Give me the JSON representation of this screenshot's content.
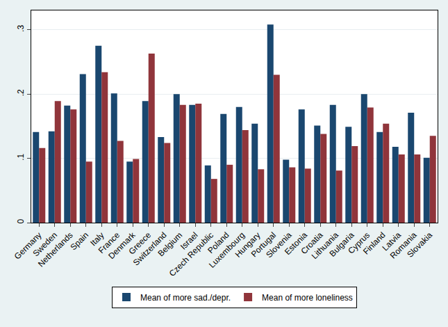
{
  "chart_data": {
    "type": "bar",
    "categories": [
      "Germany",
      "Sweden",
      "Netherlands",
      "Spain",
      "Italy",
      "France",
      "Denmark",
      "Greece",
      "Switzerland",
      "Belgium",
      "Israel",
      "Czech Republic",
      "Poland",
      "Luxembourg",
      "Hungary",
      "Portugal",
      "Slovenia",
      "Estonia",
      "Croatia",
      "Lithuania",
      "Bulgaria",
      "Cyprus",
      "Finland",
      "Latvia",
      "Romania",
      "Slovakia"
    ],
    "series": [
      {
        "name": "Mean of more sad./depr.",
        "color": "#1a476f",
        "values": [
          0.141,
          0.142,
          0.182,
          0.231,
          0.275,
          0.201,
          0.095,
          0.189,
          0.133,
          0.2,
          0.183,
          0.089,
          0.169,
          0.18,
          0.154,
          0.308,
          0.098,
          0.176,
          0.151,
          0.183,
          0.149,
          0.2,
          0.141,
          0.118,
          0.171,
          0.101
        ]
      },
      {
        "name": "Mean of more loneliness",
        "color": "#90353b",
        "values": [
          0.116,
          0.189,
          0.176,
          0.095,
          0.234,
          0.127,
          0.099,
          0.263,
          0.124,
          0.183,
          0.185,
          0.068,
          0.09,
          0.144,
          0.083,
          0.23,
          0.086,
          0.084,
          0.138,
          0.081,
          0.119,
          0.179,
          0.154,
          0.106,
          0.106,
          0.135
        ]
      }
    ],
    "ylim": [
      0,
      0.33
    ],
    "yticks": [
      0,
      {
        "value": 0.1,
        "label": ".1"
      },
      {
        "value": 0.2,
        "label": ".2"
      },
      {
        "value": 0.3,
        "label": ".3"
      }
    ],
    "grid": true,
    "legend": "bottom"
  }
}
